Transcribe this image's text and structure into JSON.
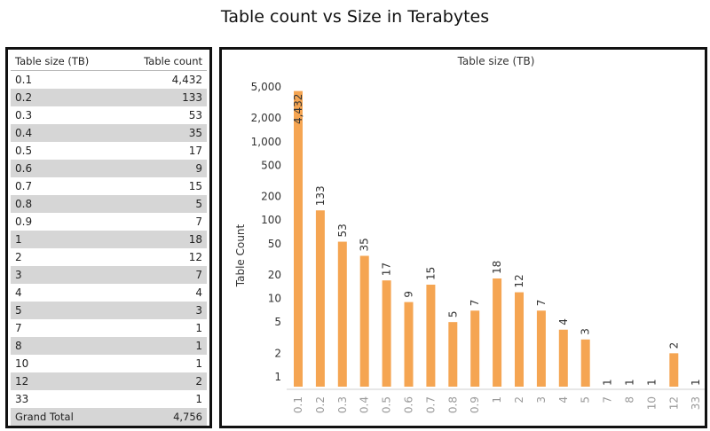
{
  "page": {
    "title": "Table count vs Size in Terabytes"
  },
  "table": {
    "headers": [
      "Table size (TB)",
      "Table count"
    ],
    "rows": [
      [
        "0.1",
        "4,432"
      ],
      [
        "0.2",
        "133"
      ],
      [
        "0.3",
        "53"
      ],
      [
        "0.4",
        "35"
      ],
      [
        "0.5",
        "17"
      ],
      [
        "0.6",
        "9"
      ],
      [
        "0.7",
        "15"
      ],
      [
        "0.8",
        "5"
      ],
      [
        "0.9",
        "7"
      ],
      [
        "1",
        "18"
      ],
      [
        "2",
        "12"
      ],
      [
        "3",
        "7"
      ],
      [
        "4",
        "4"
      ],
      [
        "5",
        "3"
      ],
      [
        "7",
        "1"
      ],
      [
        "8",
        "1"
      ],
      [
        "10",
        "1"
      ],
      [
        "12",
        "2"
      ],
      [
        "33",
        "1"
      ]
    ],
    "total": [
      "Grand Total",
      "4,756"
    ]
  },
  "chart_data": {
    "type": "bar",
    "title": "Table size (TB)",
    "xlabel": "",
    "ylabel": "Table Count",
    "yscale": "log",
    "ylim": [
      0.75,
      5000
    ],
    "yticks": [
      1,
      2,
      5,
      10,
      20,
      50,
      100,
      200,
      500,
      1000,
      2000,
      5000
    ],
    "ytick_labels": [
      "1",
      "2",
      "5",
      "10",
      "20",
      "50",
      "100",
      "200",
      "500",
      "1,000",
      "2,000",
      "5,000"
    ],
    "categories": [
      "0.1",
      "0.2",
      "0.3",
      "0.4",
      "0.5",
      "0.6",
      "0.7",
      "0.8",
      "0.9",
      "1",
      "2",
      "3",
      "4",
      "5",
      "7",
      "8",
      "10",
      "12",
      "33"
    ],
    "values": [
      4432,
      133,
      53,
      35,
      17,
      9,
      15,
      5,
      7,
      18,
      12,
      7,
      4,
      3,
      1,
      1,
      1,
      2,
      1
    ],
    "value_labels": [
      "4,432",
      "133",
      "53",
      "35",
      "17",
      "9",
      "15",
      "5",
      "7",
      "18",
      "12",
      "7",
      "4",
      "3",
      "1",
      "1",
      "1",
      "2",
      "1"
    ],
    "bar_color": "#f5a552",
    "grid": false,
    "legend": "none"
  }
}
